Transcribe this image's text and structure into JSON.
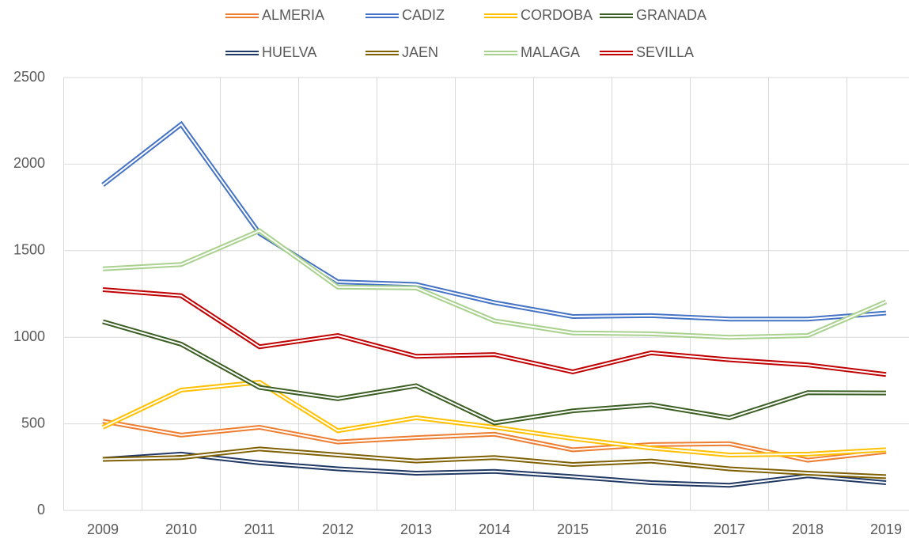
{
  "chart_data": {
    "type": "line",
    "categories": [
      "2009",
      "2010",
      "2011",
      "2012",
      "2013",
      "2014",
      "2015",
      "2016",
      "2017",
      "2018",
      "2019"
    ],
    "series": [
      {
        "name": "ALMERIA",
        "color": "#ed7d31",
        "values": [
          515,
          435,
          480,
          395,
          420,
          440,
          350,
          380,
          385,
          290,
          340
        ]
      },
      {
        "name": "CADIZ",
        "color": "#4472c4",
        "values": [
          1880,
          2230,
          1600,
          1320,
          1305,
          1200,
          1120,
          1125,
          1105,
          1105,
          1140
        ]
      },
      {
        "name": "CORDOBA",
        "color": "#ffc000",
        "values": [
          480,
          695,
          740,
          460,
          535,
          480,
          415,
          360,
          320,
          325,
          350
        ]
      },
      {
        "name": "GRANADA",
        "color": "#3b5e23",
        "values": [
          1090,
          960,
          710,
          645,
          720,
          505,
          575,
          610,
          535,
          680,
          678
        ]
      },
      {
        "name": "HUELVA",
        "color": "#203864",
        "values": [
          295,
          325,
          275,
          240,
          215,
          225,
          195,
          160,
          145,
          200,
          160
        ]
      },
      {
        "name": "JAEN",
        "color": "#7f6000",
        "values": [
          295,
          305,
          355,
          320,
          285,
          305,
          265,
          285,
          240,
          215,
          195
        ]
      },
      {
        "name": "MALAGA",
        "color": "#a9d18e",
        "values": [
          1395,
          1420,
          1615,
          1290,
          1285,
          1095,
          1025,
          1020,
          1000,
          1010,
          1205
        ]
      },
      {
        "name": "SEVILLA",
        "color": "#c00000",
        "values": [
          1275,
          1240,
          945,
          1010,
          890,
          900,
          800,
          910,
          870,
          840,
          785
        ]
      }
    ],
    "ylim": [
      0,
      2500
    ],
    "yticks": [
      0,
      500,
      1000,
      1500,
      2000,
      2500
    ],
    "grid": true
  }
}
